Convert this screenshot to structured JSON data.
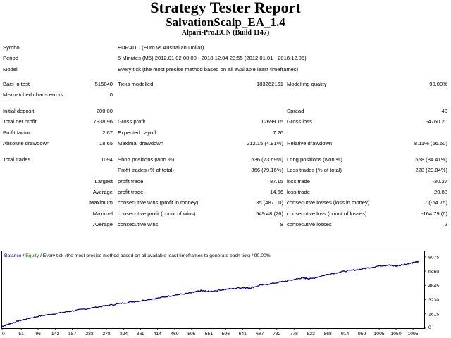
{
  "header": {
    "title": "Strategy Tester Report",
    "subtitle": "SalvationScalp_EA_1.4",
    "build": "Alpari-Pro.ECN (Build 1147)"
  },
  "info": {
    "symbol_label": "Symbol",
    "symbol_value": "EURAUD (Euro vs Australian Dollar)",
    "period_label": "Period",
    "period_value": "5 Minutes (M5) 2012.01.02 00:00 - 2018.12.04 23:55 (2012.01.01 - 2018.12.05)",
    "model_label": "Model",
    "model_value": "Every tick (the most precise method based on all available least timeframes)"
  },
  "stats": {
    "bars_label": "Bars in test",
    "bars_value": "515840",
    "ticks_label": "Ticks modelled",
    "ticks_value": "183262161",
    "quality_label": "Modelling quality",
    "quality_value": "90.00%",
    "mismatch_label": "Mismatched charts errors",
    "mismatch_value": "0",
    "deposit_label": "Initial deposit",
    "deposit_value": "200.00",
    "spread_label": "Spread",
    "spread_value": "40",
    "netprofit_label": "Total net profit",
    "netprofit_value": "7938.96",
    "grossprofit_label": "Gross profit",
    "grossprofit_value": "12699.15",
    "grossloss_label": "Gross loss",
    "grossloss_value": "-4760.20",
    "pf_label": "Profit factor",
    "pf_value": "2.67",
    "payoff_label": "Expected payoff",
    "payoff_value": "7.26",
    "absdd_label": "Absolute drawdown",
    "absdd_value": "18.65",
    "maxdd_label": "Maximal drawdown",
    "maxdd_value": "212.15 (4.91%)",
    "reldd_label": "Relative drawdown",
    "reldd_value": "8.11% (66.50)",
    "trades_label": "Total trades",
    "trades_value": "1094",
    "short_label": "Short positions (won %)",
    "short_value": "536 (73.69%)",
    "long_label": "Long positions (won %)",
    "long_value": "558 (84.41%)",
    "ptrades_label": "Profit trades (% of total)",
    "ptrades_value": "866 (79.16%)",
    "ltrades_label": "Loss trades (% of total)",
    "ltrades_value": "228 (20.84%)",
    "largest_label": "Largest",
    "largest_pt_label": "profit trade",
    "largest_pt_value": "87.15",
    "largest_lt_label": "loss trade",
    "largest_lt_value": "-30.27",
    "average_label": "Average",
    "average_pt_label": "profit trade",
    "average_pt_value": "14.66",
    "average_lt_label": "loss trade",
    "average_lt_value": "-20.88",
    "maximum_label": "Maximum",
    "max_cw_label": "consecutive wins (profit in money)",
    "max_cw_value": "35 (487.00)",
    "max_cl_label": "consecutive losses (loss in money)",
    "max_cl_value": "7 (-64.75)",
    "maximal_label": "Maximal",
    "mxl_cp_label": "consecutive profit (count of wins)",
    "mxl_cp_value": "549.48 (26)",
    "mxl_cl_label": "consecutive loss (count of losses)",
    "mxl_cl_value": "-164.79 (6)",
    "avg2_label": "Average",
    "avg_cw_label": "consecutive wins",
    "avg_cw_value": "8",
    "avg_cl_label": "consecutive losses",
    "avg_cl_value": "2"
  },
  "chart_data": {
    "type": "line",
    "legend": {
      "balance": "Balance",
      "sep1": " / ",
      "equity": "Equity",
      "rest": " / Every tick (the most precise method based on all available least timeframes to generate each tick) / 90.00%"
    },
    "x_ticks": [
      "0",
      "51",
      "96",
      "142",
      "187",
      "233",
      "278",
      "324",
      "369",
      "414",
      "460",
      "505",
      "551",
      "596",
      "641",
      "687",
      "732",
      "778",
      "823",
      "868",
      "914",
      "959",
      "1005",
      "1050",
      "1095"
    ],
    "y_ticks": [
      "8075",
      "6460",
      "4845",
      "3230",
      "1615",
      "0"
    ],
    "ylim": [
      0,
      8700
    ],
    "xlim": [
      0,
      1125
    ],
    "colors": {
      "balance": "#00008b",
      "equity": "#008000",
      "frame": "#000000"
    },
    "balance": {
      "x": [
        0,
        20,
        51,
        96,
        142,
        187,
        233,
        278,
        324,
        369,
        414,
        460,
        505,
        530,
        551,
        596,
        641,
        660,
        687,
        732,
        778,
        800,
        823,
        868,
        914,
        959,
        1005,
        1030,
        1050,
        1070,
        1095,
        1110
      ],
      "y": [
        200,
        500,
        900,
        1350,
        1650,
        1950,
        2250,
        2550,
        2850,
        3100,
        3400,
        3750,
        4000,
        4250,
        4150,
        4400,
        4600,
        4550,
        4850,
        5150,
        5500,
        5700,
        5600,
        6100,
        6450,
        6700,
        7050,
        7150,
        7050,
        7200,
        7400,
        7550
      ]
    }
  }
}
